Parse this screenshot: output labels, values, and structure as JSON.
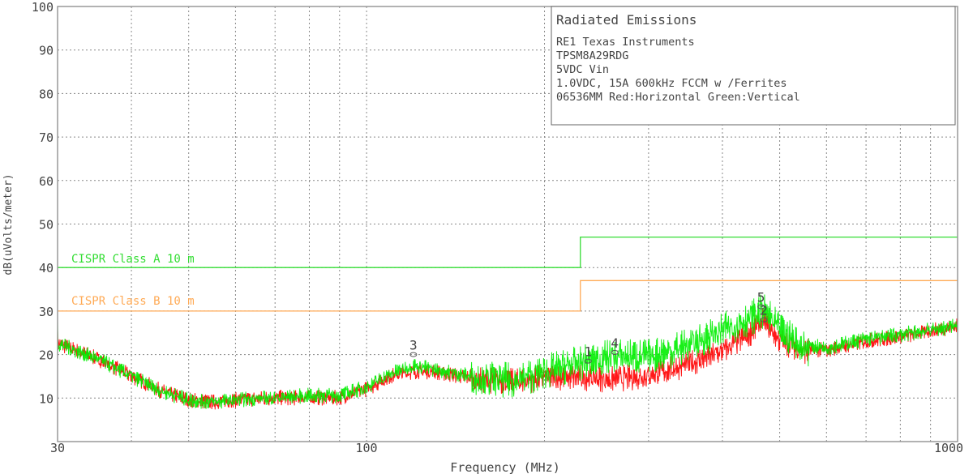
{
  "chart_data": {
    "type": "line",
    "xlabel": "Frequency (MHz)",
    "ylabel": "dB(uVolts/meter)",
    "x_scale": "log",
    "xlim": [
      30,
      1000
    ],
    "ylim": [
      0,
      100
    ],
    "grid": true,
    "x_tick_labels": [
      "30",
      "100",
      "1000"
    ],
    "y_ticks": [
      10,
      20,
      30,
      40,
      50,
      60,
      70,
      80,
      90,
      100
    ],
    "legend_box": {
      "title": "Radiated Emissions",
      "lines": [
        "RE1 Texas Instruments",
        "TPSM8A29RDG",
        "5VDC Vin",
        "1.0VDC, 15A 600kHz FCCM w /Ferrites",
        "06536MM Red:Horizontal Green:Vertical"
      ],
      "placement": "top-right"
    },
    "limit_lines": [
      {
        "name": "CISPR Class A 10 m",
        "color": "#33dd33",
        "points": [
          [
            30,
            40
          ],
          [
            230,
            40
          ],
          [
            230,
            47
          ],
          [
            1000,
            47
          ]
        ]
      },
      {
        "name": "CISPR Class B 10 m",
        "color": "#ffaa55",
        "points": [
          [
            30,
            30
          ],
          [
            230,
            30
          ],
          [
            230,
            37
          ],
          [
            1000,
            37
          ]
        ]
      }
    ],
    "series": [
      {
        "color": "#ff0000",
        "envelope": [
          [
            30,
            23
          ],
          [
            35,
            19.5
          ],
          [
            40,
            15.5
          ],
          [
            45,
            12
          ],
          [
            50,
            10
          ],
          [
            55,
            9.5
          ],
          [
            60,
            10
          ],
          [
            70,
            10.5
          ],
          [
            80,
            10.5
          ],
          [
            90,
            10.5
          ],
          [
            100,
            12.5
          ],
          [
            110,
            15.5
          ],
          [
            120,
            16.5
          ],
          [
            130,
            16.5
          ],
          [
            150,
            15
          ],
          [
            180,
            14.5
          ],
          [
            200,
            15.5
          ],
          [
            230,
            15.5
          ],
          [
            260,
            15
          ],
          [
            300,
            16
          ],
          [
            350,
            18.5
          ],
          [
            400,
            21.5
          ],
          [
            440,
            25
          ],
          [
            470,
            28.5
          ],
          [
            500,
            24
          ],
          [
            550,
            21.5
          ],
          [
            600,
            21.5
          ],
          [
            700,
            23.5
          ],
          [
            800,
            24.5
          ],
          [
            1000,
            27
          ]
        ]
      },
      {
        "color": "#00ee00",
        "envelope": [
          [
            30,
            23
          ],
          [
            35,
            19.5
          ],
          [
            40,
            15.5
          ],
          [
            45,
            12
          ],
          [
            50,
            10
          ],
          [
            55,
            9.5
          ],
          [
            60,
            10
          ],
          [
            70,
            10.5
          ],
          [
            80,
            11
          ],
          [
            90,
            11
          ],
          [
            100,
            13
          ],
          [
            110,
            16
          ],
          [
            120,
            18
          ],
          [
            130,
            17
          ],
          [
            150,
            15.5
          ],
          [
            180,
            15
          ],
          [
            200,
            17
          ],
          [
            230,
            19
          ],
          [
            260,
            20.5
          ],
          [
            300,
            20.5
          ],
          [
            350,
            23
          ],
          [
            400,
            26.5
          ],
          [
            440,
            29
          ],
          [
            470,
            31
          ],
          [
            500,
            26.5
          ],
          [
            550,
            22.5
          ],
          [
            600,
            22
          ],
          [
            700,
            24
          ],
          [
            800,
            25
          ],
          [
            1000,
            27
          ]
        ]
      }
    ],
    "markers": [
      {
        "label": "1",
        "x": 237,
        "y": 18.5
      },
      {
        "label": "2",
        "x": 470,
        "y": 28
      },
      {
        "label": "3",
        "x": 120,
        "y": 20
      },
      {
        "label": "4",
        "x": 263,
        "y": 20.5
      },
      {
        "label": "5",
        "x": 465,
        "y": 31
      }
    ]
  }
}
